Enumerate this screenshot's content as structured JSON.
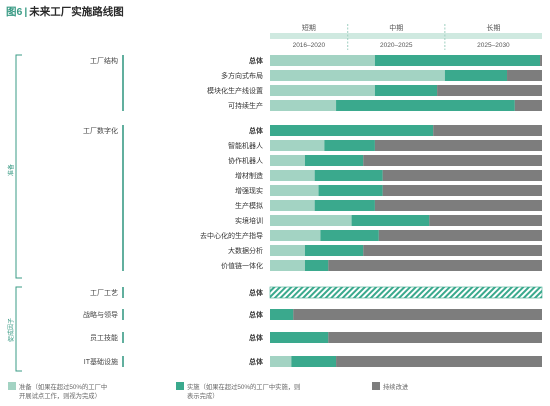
{
  "figure": {
    "number": "图6",
    "separator": "|",
    "title": "未来工厂实施路线图"
  },
  "chart_data": {
    "type": "bar",
    "stacked": true,
    "orientation": "horizontal",
    "phases": [
      {
        "name": "短期",
        "range": "2016–2020"
      },
      {
        "name": "中期",
        "range": "2020–2025"
      },
      {
        "name": "长期",
        "range": "2025–2030"
      }
    ],
    "x_domain": [
      2016,
      2030
    ],
    "side_labels": [
      "准备",
      "促成因子"
    ],
    "groups": [
      {
        "label": "工厂结构",
        "rows": [
          {
            "label": "总体",
            "bold": true,
            "values": [
              2021.4,
              2029.9,
              2030
            ]
          },
          {
            "label": "多方向式布局",
            "bold": false,
            "values": [
              2025.0,
              2028.2,
              2030
            ]
          },
          {
            "label": "模块化生产线设置",
            "bold": false,
            "values": [
              2021.4,
              2024.6,
              2030
            ]
          },
          {
            "label": "可持续生产",
            "bold": false,
            "values": [
              2019.4,
              2028.6,
              2030
            ]
          }
        ]
      },
      {
        "label": "工厂数字化",
        "rows": [
          {
            "label": "总体",
            "bold": true,
            "values": [
              2016,
              2024.4,
              2030
            ]
          },
          {
            "label": "智能机器人",
            "bold": false,
            "values": [
              2018.8,
              2021.4,
              2030
            ]
          },
          {
            "label": "协作机器人",
            "bold": false,
            "values": [
              2017.8,
              2020.8,
              2030
            ]
          },
          {
            "label": "增材制造",
            "bold": false,
            "values": [
              2018.3,
              2021.8,
              2030
            ]
          },
          {
            "label": "增强现实",
            "bold": false,
            "values": [
              2018.5,
              2021.8,
              2030
            ]
          },
          {
            "label": "生产模拟",
            "bold": false,
            "values": [
              2018.3,
              2021.4,
              2030
            ]
          },
          {
            "label": "实境培训",
            "bold": false,
            "values": [
              2020.2,
              2024.2,
              2030
            ]
          },
          {
            "label": "去中心化的生产指导",
            "bold": false,
            "values": [
              2018.6,
              2021.6,
              2030
            ]
          },
          {
            "label": "大数据分析",
            "bold": false,
            "values": [
              2017.8,
              2020.8,
              2030
            ]
          },
          {
            "label": "价值链一体化",
            "bold": false,
            "values": [
              2017.8,
              2019.0,
              2030
            ]
          }
        ]
      },
      {
        "label": "工厂工艺",
        "rows": [
          {
            "label": "总体",
            "bold": true,
            "values": null,
            "hatched": true
          }
        ]
      },
      {
        "label": "战略与领导",
        "rows": [
          {
            "label": "总体",
            "bold": true,
            "values": [
              2016,
              2017.2,
              2030
            ]
          }
        ]
      },
      {
        "label": "员工技能",
        "rows": [
          {
            "label": "总体",
            "bold": true,
            "values": [
              2016,
              2019.0,
              2030
            ]
          }
        ]
      },
      {
        "label": "IT基础设施",
        "rows": [
          {
            "label": "总体",
            "bold": true,
            "values": [
              2017.1,
              2019.4,
              2030
            ]
          }
        ]
      }
    ],
    "legend": [
      {
        "name": "准备",
        "note": "（如果在超过50%的工厂中开展试点工作，则视为完成）",
        "line1": "准备（如果在超过50%的工厂中",
        "line2": "开展试点工作，则视为完成）",
        "color": "#a3d3c3"
      },
      {
        "name": "实施",
        "note": "（如果在超过50%的工厂中实施，则表示完成）",
        "line1": "实施（如果在超过50%的工厂中实施，则",
        "line2": "表示完成）",
        "color": "#3aa98d"
      },
      {
        "name": "持续改进",
        "line1": "持续改进",
        "line2": "",
        "color": "#7d7d7d"
      }
    ]
  },
  "colors": {
    "prep": "#a3d3c3",
    "impl": "#3aa98d",
    "cont": "#7d7d7d",
    "accent": "#3a9b85",
    "phase_fill": "#cfe9e0"
  }
}
